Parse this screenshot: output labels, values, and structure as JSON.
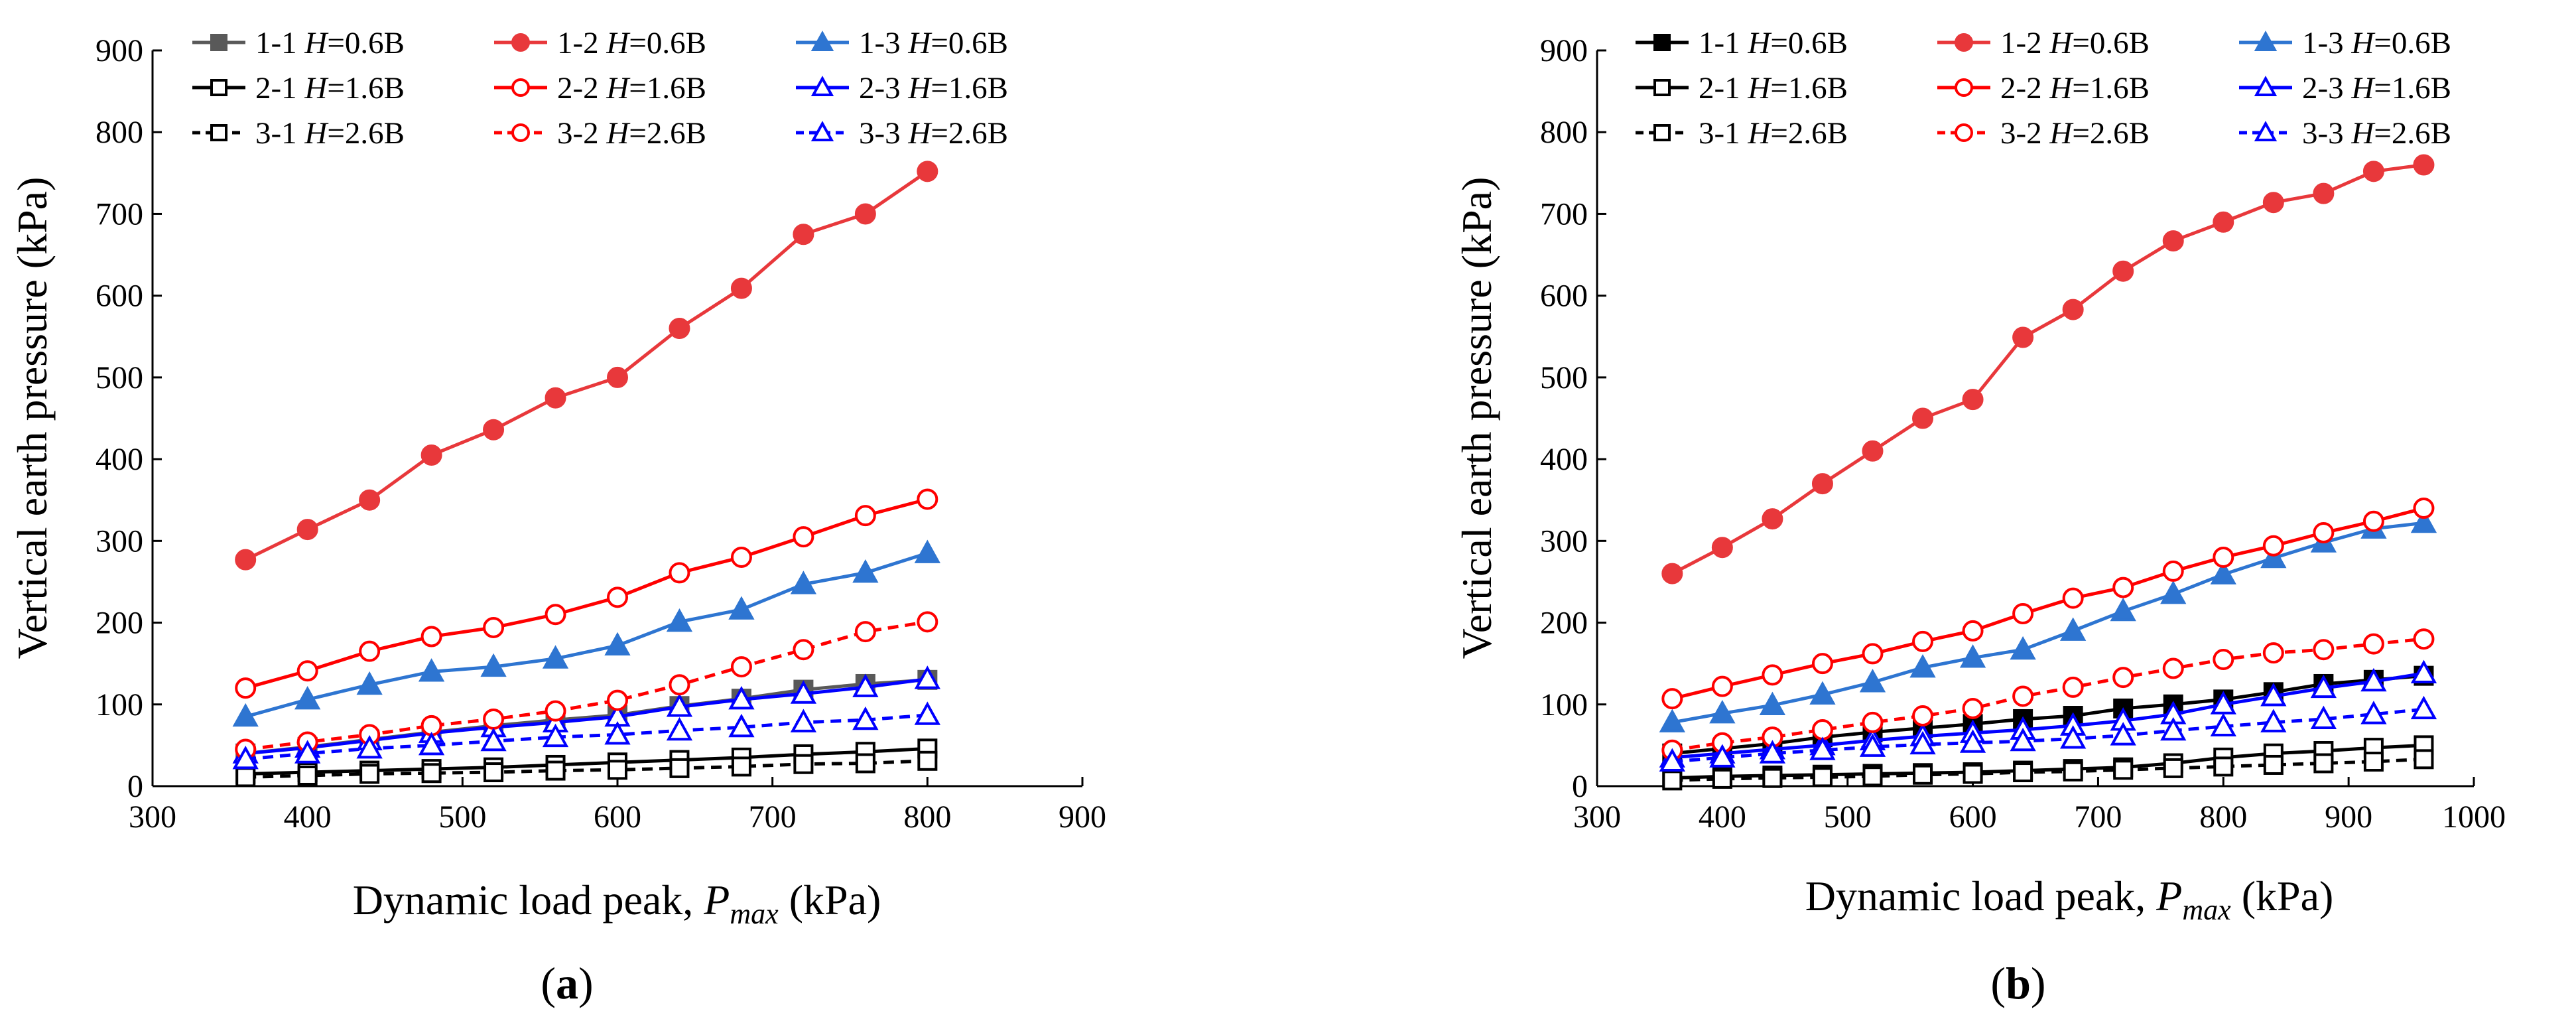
{
  "chart_data": [
    {
      "type": "line",
      "panel_label_open": "(",
      "panel_label": "a",
      "panel_label_close": ")",
      "xlabel_prefix": "Dynamic load peak, ",
      "xlabel_var": "P",
      "xlabel_sub": "max",
      "xlabel_unit": " (kPa)",
      "ylabel": "Vertical earth pressure (kPa)",
      "xlim": [
        300,
        900
      ],
      "ylim": [
        0,
        900
      ],
      "xticks": [
        300,
        400,
        500,
        600,
        700,
        800,
        900
      ],
      "yticks": [
        0,
        100,
        200,
        300,
        400,
        500,
        600,
        700,
        800,
        900
      ],
      "grid": false,
      "legend_position": "top",
      "series": [
        {
          "name": "1-1",
          "label_var": "H",
          "label_suffix": "=0.6B",
          "color": "#595959",
          "marker": "square",
          "filled": true,
          "dash": "solid",
          "x": [
            360,
            400,
            440,
            480,
            520,
            560,
            600,
            640,
            680,
            720,
            760,
            800
          ],
          "y": [
            40,
            48,
            57,
            66,
            74,
            81,
            87,
            98,
            107,
            118,
            125,
            130
          ]
        },
        {
          "name": "1-2",
          "label_var": "H",
          "label_suffix": "=0.6B",
          "color": "#e8383b",
          "marker": "circle",
          "filled": true,
          "dash": "solid",
          "x": [
            360,
            400,
            440,
            480,
            520,
            560,
            600,
            640,
            680,
            720,
            760,
            800
          ],
          "y": [
            277,
            314,
            350,
            405,
            436,
            475,
            500,
            560,
            609,
            675,
            700,
            752
          ]
        },
        {
          "name": "1-3",
          "label_var": "H",
          "label_suffix": "=0.6B",
          "color": "#2e75d1",
          "marker": "triangle",
          "filled": true,
          "dash": "solid",
          "x": [
            360,
            400,
            440,
            480,
            520,
            560,
            600,
            640,
            680,
            720,
            760,
            800
          ],
          "y": [
            85,
            106,
            124,
            140,
            146,
            156,
            172,
            201,
            216,
            247,
            261,
            285
          ]
        },
        {
          "name": "2-1",
          "label_var": "H",
          "label_suffix": "=1.6B",
          "color": "#000000",
          "marker": "square",
          "filled": false,
          "dash": "solid",
          "x": [
            360,
            400,
            440,
            480,
            520,
            560,
            600,
            640,
            680,
            720,
            760,
            800
          ],
          "y": [
            15,
            17,
            19,
            21,
            23,
            26,
            29,
            32,
            35,
            39,
            42,
            46
          ]
        },
        {
          "name": "2-2",
          "label_var": "H",
          "label_suffix": "=1.6B",
          "color": "#ff0000",
          "marker": "circle",
          "filled": false,
          "dash": "solid",
          "x": [
            360,
            400,
            440,
            480,
            520,
            560,
            600,
            640,
            680,
            720,
            760,
            800
          ],
          "y": [
            120,
            141,
            165,
            183,
            194,
            210,
            231,
            261,
            280,
            305,
            331,
            351
          ]
        },
        {
          "name": "2-3",
          "label_var": "H",
          "label_suffix": "=1.6B",
          "color": "#0000ff",
          "marker": "triangle",
          "filled": false,
          "dash": "solid",
          "x": [
            360,
            400,
            440,
            480,
            520,
            560,
            600,
            640,
            680,
            720,
            760,
            800
          ],
          "y": [
            40,
            47,
            56,
            65,
            72,
            78,
            85,
            97,
            106,
            113,
            121,
            131
          ]
        },
        {
          "name": "3-1",
          "label_var": "H",
          "label_suffix": "=2.6B",
          "color": "#000000",
          "marker": "square",
          "filled": false,
          "dash": "dash",
          "x": [
            360,
            400,
            440,
            480,
            520,
            560,
            600,
            640,
            680,
            720,
            760,
            800
          ],
          "y": [
            11,
            13,
            15,
            16,
            17,
            19,
            20,
            22,
            24,
            27,
            28,
            31
          ]
        },
        {
          "name": "3-2",
          "label_var": "H",
          "label_suffix": "=2.6B",
          "color": "#ff0000",
          "marker": "circle",
          "filled": false,
          "dash": "dash",
          "x": [
            360,
            400,
            440,
            480,
            520,
            560,
            600,
            640,
            680,
            720,
            760,
            800
          ],
          "y": [
            45,
            54,
            63,
            74,
            82,
            92,
            105,
            124,
            146,
            167,
            189,
            201
          ]
        },
        {
          "name": "3-3",
          "label_var": "H",
          "label_suffix": "=2.6B",
          "color": "#0000ff",
          "marker": "triangle",
          "filled": false,
          "dash": "dash",
          "x": [
            360,
            400,
            440,
            480,
            520,
            560,
            600,
            640,
            680,
            720,
            760,
            800
          ],
          "y": [
            33,
            40,
            46,
            50,
            55,
            60,
            63,
            68,
            72,
            78,
            81,
            87
          ]
        }
      ]
    },
    {
      "type": "line",
      "panel_label_open": "(",
      "panel_label": "b",
      "panel_label_close": ")",
      "xlabel_prefix": "Dynamic load peak, ",
      "xlabel_var": "P",
      "xlabel_sub": "max",
      "xlabel_unit": " (kPa)",
      "ylabel": "Vertical earth pressure (kPa)",
      "xlim": [
        300,
        1000
      ],
      "ylim": [
        0,
        900
      ],
      "xticks": [
        300,
        400,
        500,
        600,
        700,
        800,
        900,
        1000
      ],
      "yticks": [
        0,
        100,
        200,
        300,
        400,
        500,
        600,
        700,
        800,
        900
      ],
      "grid": false,
      "legend_position": "top",
      "series": [
        {
          "name": "1-1",
          "label_var": "H",
          "label_suffix": "=0.6B",
          "color": "#000000",
          "marker": "square",
          "filled": true,
          "dash": "solid",
          "x": [
            360,
            400,
            440,
            480,
            520,
            560,
            600,
            640,
            680,
            720,
            760,
            800,
            840,
            880,
            920,
            960
          ],
          "y": [
            40,
            46,
            52,
            60,
            66,
            71,
            76,
            82,
            86,
            95,
            100,
            106,
            115,
            125,
            130,
            135
          ]
        },
        {
          "name": "1-2",
          "label_var": "H",
          "label_suffix": "=0.6B",
          "color": "#e8383b",
          "marker": "circle",
          "filled": true,
          "dash": "solid",
          "x": [
            360,
            400,
            440,
            480,
            520,
            560,
            600,
            640,
            680,
            720,
            760,
            800,
            840,
            880,
            920,
            960
          ],
          "y": [
            260,
            292,
            327,
            370,
            410,
            450,
            473,
            549,
            583,
            630,
            667,
            690,
            714,
            725,
            752,
            760
          ]
        },
        {
          "name": "1-3",
          "label_var": "H",
          "label_suffix": "=0.6B",
          "color": "#2e75d1",
          "marker": "triangle",
          "filled": true,
          "dash": "solid",
          "x": [
            360,
            400,
            440,
            480,
            520,
            560,
            600,
            640,
            680,
            720,
            760,
            800,
            840,
            880,
            920,
            960
          ],
          "y": [
            78,
            89,
            99,
            112,
            127,
            145,
            157,
            167,
            190,
            214,
            235,
            259,
            279,
            298,
            315,
            322
          ]
        },
        {
          "name": "2-1",
          "label_var": "H",
          "label_suffix": "=1.6B",
          "color": "#000000",
          "marker": "square",
          "filled": false,
          "dash": "solid",
          "x": [
            360,
            400,
            440,
            480,
            520,
            560,
            600,
            640,
            680,
            720,
            760,
            800,
            840,
            880,
            920,
            960
          ],
          "y": [
            10,
            12,
            13,
            14,
            15,
            16,
            17,
            19,
            21,
            23,
            28,
            35,
            40,
            43,
            47,
            50
          ]
        },
        {
          "name": "2-2",
          "label_var": "H",
          "label_suffix": "=1.6B",
          "color": "#ff0000",
          "marker": "circle",
          "filled": false,
          "dash": "solid",
          "x": [
            360,
            400,
            440,
            480,
            520,
            560,
            600,
            640,
            680,
            720,
            760,
            800,
            840,
            880,
            920,
            960
          ],
          "y": [
            107,
            122,
            136,
            150,
            162,
            177,
            190,
            211,
            230,
            243,
            263,
            280,
            294,
            310,
            324,
            340
          ]
        },
        {
          "name": "2-3",
          "label_var": "H",
          "label_suffix": "=1.6B",
          "color": "#0000ff",
          "marker": "triangle",
          "filled": false,
          "dash": "solid",
          "x": [
            360,
            400,
            440,
            480,
            520,
            560,
            600,
            640,
            680,
            720,
            760,
            800,
            840,
            880,
            920,
            960
          ],
          "y": [
            35,
            40,
            45,
            50,
            56,
            61,
            65,
            69,
            74,
            80,
            88,
            100,
            110,
            120,
            128,
            138
          ]
        },
        {
          "name": "3-1",
          "label_var": "H",
          "label_suffix": "=2.6B",
          "color": "#000000",
          "marker": "square",
          "filled": false,
          "dash": "dash",
          "x": [
            360,
            400,
            440,
            480,
            520,
            560,
            600,
            640,
            680,
            720,
            760,
            800,
            840,
            880,
            920,
            960
          ],
          "y": [
            7,
            9,
            10,
            11,
            12,
            14,
            15,
            17,
            18,
            20,
            22,
            24,
            26,
            28,
            30,
            33
          ]
        },
        {
          "name": "3-2",
          "label_var": "H",
          "label_suffix": "=2.6B",
          "color": "#ff0000",
          "marker": "circle",
          "filled": false,
          "dash": "dash",
          "x": [
            360,
            400,
            440,
            480,
            520,
            560,
            600,
            640,
            680,
            720,
            760,
            800,
            840,
            880,
            920,
            960
          ],
          "y": [
            44,
            53,
            60,
            69,
            78,
            86,
            95,
            110,
            121,
            133,
            144,
            155,
            163,
            167,
            174,
            180
          ]
        },
        {
          "name": "3-3",
          "label_var": "H",
          "label_suffix": "=2.6B",
          "color": "#0000ff",
          "marker": "triangle",
          "filled": false,
          "dash": "dash",
          "x": [
            360,
            400,
            440,
            480,
            520,
            560,
            600,
            640,
            680,
            720,
            760,
            800,
            840,
            880,
            920,
            960
          ],
          "y": [
            30,
            35,
            40,
            44,
            48,
            51,
            53,
            55,
            58,
            62,
            68,
            73,
            78,
            82,
            88,
            94
          ]
        }
      ]
    }
  ]
}
